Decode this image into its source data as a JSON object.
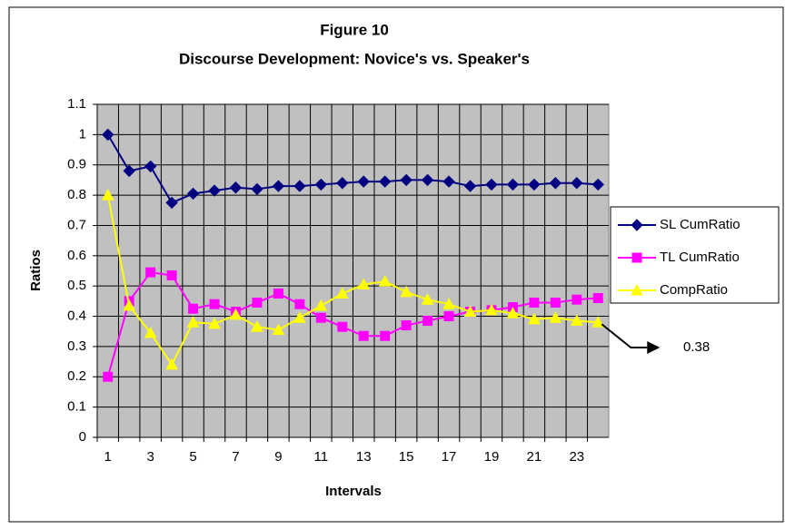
{
  "chart_data": {
    "type": "line",
    "title": "Figure 10",
    "subtitle": "Discourse Development: Novice's vs. Speaker's",
    "x_label": "Intervals",
    "y_label": "Ratios",
    "categories": [
      1,
      null,
      3,
      null,
      5,
      null,
      7,
      null,
      9,
      null,
      11,
      null,
      13,
      null,
      15,
      null,
      17,
      null,
      19,
      null,
      21,
      null,
      23,
      null
    ],
    "series": [
      {
        "name": "SL CumRatio",
        "color": "#000080",
        "marker": "diamond",
        "values": [
          1,
          0.88,
          0.895,
          0.775,
          0.805,
          0.815,
          0.825,
          0.82,
          0.83,
          0.83,
          0.835,
          0.84,
          0.845,
          0.845,
          0.85,
          0.85,
          0.845,
          0.83,
          0.835,
          0.835,
          0.835,
          0.84,
          0.84,
          0.835
        ]
      },
      {
        "name": "TL CumRatio",
        "color": "#ff00ff",
        "marker": "square",
        "values": [
          0.2,
          0.45,
          0.545,
          0.535,
          0.425,
          0.44,
          0.415,
          0.445,
          0.475,
          0.44,
          0.395,
          0.365,
          0.335,
          0.335,
          0.37,
          0.385,
          0.4,
          0.415,
          0.42,
          0.43,
          0.445,
          0.445,
          0.455,
          0.46
        ]
      },
      {
        "name": "CompRatio",
        "color": "#ffff00",
        "marker": "triangle",
        "values": [
          0.8,
          0.435,
          0.345,
          0.24,
          0.38,
          0.375,
          0.405,
          0.365,
          0.355,
          0.395,
          0.435,
          0.475,
          0.505,
          0.515,
          0.48,
          0.455,
          0.44,
          0.415,
          0.42,
          0.41,
          0.39,
          0.395,
          0.385,
          0.38
        ]
      }
    ],
    "annotation": "0.38",
    "ylim": [
      0,
      1.1
    ],
    "yticks": [
      0,
      0.1,
      0.2,
      0.3,
      0.4,
      0.5,
      0.6,
      0.7,
      0.8,
      0.9,
      1,
      1.1
    ],
    "grid": true,
    "plot_background": "#c0c0c0",
    "legend": "right"
  }
}
